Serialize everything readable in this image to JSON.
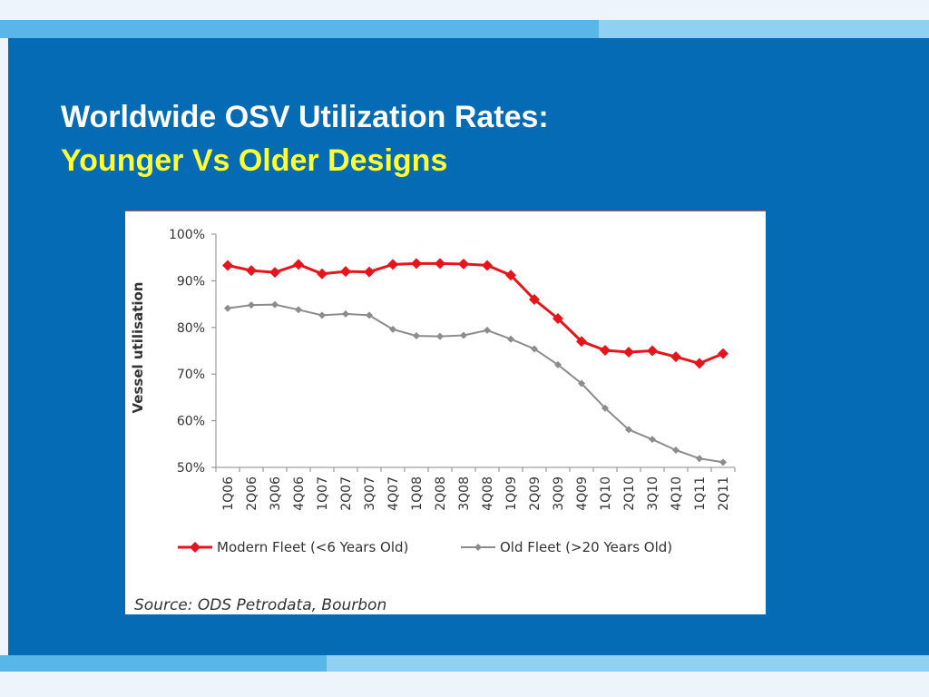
{
  "slide": {
    "title": "Worldwide OSV Utilization Rates:",
    "subtitle": "Younger Vs Older Designs",
    "source": "Source: ODS Petrodata, Bourbon"
  },
  "colors": {
    "panel": "#066bb5",
    "title": "#ffffff",
    "subtitle": "#ffff33",
    "modern_fleet": "#e8141b",
    "old_fleet": "#8c8c8c"
  },
  "chart_data": {
    "type": "line",
    "title": "",
    "xlabel": "",
    "ylabel": "Vessel utilisation",
    "ylim": [
      50,
      100
    ],
    "yticks": [
      "50%",
      "60%",
      "70%",
      "80%",
      "90%",
      "100%"
    ],
    "y_tick_values": [
      50,
      60,
      70,
      80,
      90,
      100
    ],
    "grid": false,
    "legend_position": "bottom",
    "categories": [
      "1Q06",
      "2Q06",
      "3Q06",
      "4Q06",
      "1Q07",
      "2Q07",
      "3Q07",
      "4Q07",
      "1Q08",
      "2Q08",
      "3Q08",
      "4Q08",
      "1Q09",
      "2Q09",
      "3Q09",
      "4Q09",
      "1Q10",
      "2Q10",
      "3Q10",
      "4Q10",
      "1Q11",
      "2Q11"
    ],
    "series": [
      {
        "name": "Modern Fleet (<6 Years Old)",
        "marker": "diamond",
        "values": [
          93.3,
          92.2,
          91.8,
          93.5,
          91.5,
          92.0,
          91.9,
          93.5,
          93.7,
          93.7,
          93.6,
          93.3,
          91.2,
          86.0,
          81.9,
          77.0,
          75.1,
          74.7,
          75.0,
          73.7,
          72.3,
          74.4
        ]
      },
      {
        "name": "Old Fleet (>20 Years Old)",
        "marker": "diamond",
        "values": [
          84.1,
          84.8,
          84.9,
          83.8,
          82.6,
          82.9,
          82.6,
          79.6,
          78.2,
          78.1,
          78.3,
          79.4,
          77.5,
          75.4,
          72.0,
          68.0,
          62.7,
          58.1,
          56.0,
          53.7,
          51.9,
          51.1
        ]
      }
    ]
  }
}
